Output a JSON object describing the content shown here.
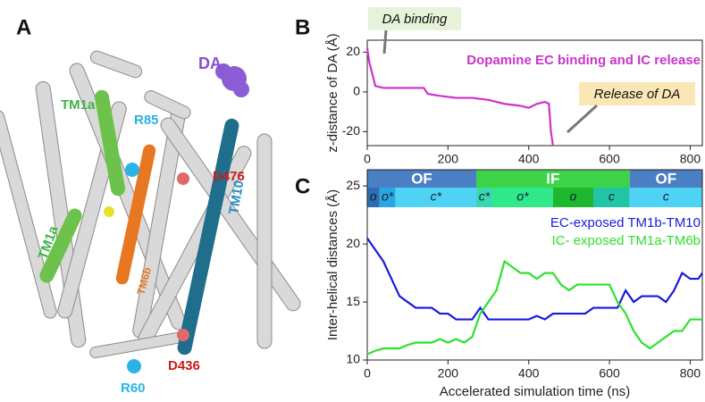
{
  "structure": {
    "panel": "A",
    "labels": [
      "DA",
      "TM1a",
      "R85",
      "D476",
      "TM10",
      "TM1a",
      "TM6b",
      "D436",
      "R60"
    ]
  },
  "chart_data": [
    {
      "type": "line",
      "panel": "B",
      "ylabel": "z-distance of DA (Å)",
      "annotations": [
        "DA binding",
        "Release of DA"
      ],
      "x": [
        0,
        5,
        20,
        40,
        80,
        120,
        140,
        150,
        180,
        220,
        260,
        300,
        340,
        380,
        400,
        420,
        440,
        450,
        455,
        460
      ],
      "series": [
        {
          "name": "Dopamine EC binding and IC release",
          "color": "#cc33cc",
          "values": [
            22,
            15,
            3,
            2,
            2,
            2,
            2,
            -1,
            -2,
            -3,
            -3,
            -4,
            -6,
            -7,
            -8,
            -6,
            -5,
            -6,
            -20,
            -27
          ]
        }
      ],
      "xlim": [
        0,
        830
      ],
      "xticks": [
        0,
        200,
        400,
        600,
        800
      ],
      "ylim": [
        -27,
        26
      ],
      "yticks": [
        -20,
        0,
        20
      ]
    },
    {
      "type": "line",
      "panel": "C",
      "xlabel": "Accelerated simulation time (ns)",
      "ylabel": "Inter-helical distances (Å)",
      "states": [
        {
          "label": "OF",
          "start": 0,
          "end": 270,
          "color": "#4a7fc4"
        },
        {
          "label": "IF",
          "start": 270,
          "end": 650,
          "color": "#3fd34a"
        },
        {
          "label": "OF",
          "start": 650,
          "end": 830,
          "color": "#4a7fc4"
        }
      ],
      "substates": [
        {
          "label": "o",
          "start": 0,
          "end": 30,
          "color": "#2f6db3"
        },
        {
          "label": "o*",
          "start": 30,
          "end": 70,
          "color": "#2aa7e0"
        },
        {
          "label": "c*",
          "start": 70,
          "end": 270,
          "color": "#4fd3f5"
        },
        {
          "label": "c*",
          "start": 270,
          "end": 310,
          "color": "#3ad8b0"
        },
        {
          "label": "o*",
          "start": 310,
          "end": 460,
          "color": "#2ee88a"
        },
        {
          "label": "o",
          "start": 460,
          "end": 560,
          "color": "#1eb82e"
        },
        {
          "label": "c",
          "start": 560,
          "end": 650,
          "color": "#22c4a8"
        },
        {
          "label": "c",
          "start": 650,
          "end": 830,
          "color": "#4fd3f5"
        }
      ],
      "x": [
        0,
        20,
        40,
        60,
        80,
        100,
        120,
        140,
        160,
        180,
        200,
        220,
        240,
        260,
        280,
        300,
        320,
        340,
        360,
        380,
        400,
        420,
        440,
        460,
        480,
        500,
        520,
        540,
        560,
        580,
        600,
        620,
        640,
        660,
        680,
        700,
        720,
        740,
        760,
        780,
        800,
        820,
        830
      ],
      "series": [
        {
          "name": "EC-exposed TM1b-TM10",
          "color": "#1a1adb",
          "values": [
            20.5,
            19.5,
            18.5,
            17,
            15.5,
            15,
            14.5,
            14.5,
            14.5,
            14,
            14,
            13.5,
            13.5,
            13.5,
            14.5,
            13.5,
            13.5,
            13.5,
            13.5,
            13.5,
            13.5,
            13.8,
            13.5,
            14,
            14,
            14,
            14,
            14,
            14.5,
            14.5,
            14.5,
            14.5,
            16,
            15,
            15.5,
            15.5,
            15.5,
            15,
            16,
            17.5,
            17,
            17,
            17.5
          ]
        },
        {
          "name": "IC- exposed TM1a-TM6b",
          "color": "#2fe02f",
          "values": [
            10.5,
            10.8,
            11,
            11,
            11,
            11.3,
            11.5,
            11.5,
            11.5,
            11.8,
            11.5,
            11.8,
            11.5,
            12,
            14,
            15,
            16,
            18.5,
            18,
            17.5,
            17.5,
            17,
            17.5,
            17.5,
            16.5,
            16,
            16.5,
            16.5,
            16.5,
            16.5,
            16.5,
            15,
            14,
            12.5,
            11.5,
            11,
            11.5,
            12,
            12.5,
            12.5,
            13.5,
            13.5,
            13.5
          ]
        }
      ],
      "xlim": [
        0,
        830
      ],
      "xticks": [
        0,
        200,
        400,
        600,
        800
      ],
      "ylim": [
        10,
        26.4
      ],
      "yticks": [
        10,
        15,
        20,
        25
      ]
    }
  ]
}
